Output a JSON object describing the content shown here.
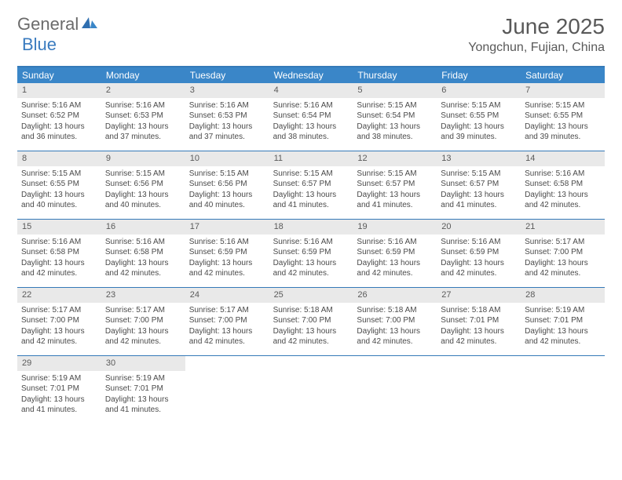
{
  "logo": {
    "text1": "General",
    "text2": "Blue"
  },
  "title": "June 2025",
  "location": "Yongchun, Fujian, China",
  "colors": {
    "header_bar": "#3a86c8",
    "header_text": "#ffffff",
    "border": "#357ab8",
    "daynum_bg": "#e9e9e9",
    "text": "#4a4a4a",
    "title_text": "#595959",
    "logo_gray": "#6b6b6b",
    "logo_blue": "#3a7bbf"
  },
  "weekdays": [
    "Sunday",
    "Monday",
    "Tuesday",
    "Wednesday",
    "Thursday",
    "Friday",
    "Saturday"
  ],
  "weeks": [
    [
      {
        "n": "1",
        "sunrise": "5:16 AM",
        "sunset": "6:52 PM",
        "day_h": 13,
        "day_m": 36
      },
      {
        "n": "2",
        "sunrise": "5:16 AM",
        "sunset": "6:53 PM",
        "day_h": 13,
        "day_m": 37
      },
      {
        "n": "3",
        "sunrise": "5:16 AM",
        "sunset": "6:53 PM",
        "day_h": 13,
        "day_m": 37
      },
      {
        "n": "4",
        "sunrise": "5:16 AM",
        "sunset": "6:54 PM",
        "day_h": 13,
        "day_m": 38
      },
      {
        "n": "5",
        "sunrise": "5:15 AM",
        "sunset": "6:54 PM",
        "day_h": 13,
        "day_m": 38
      },
      {
        "n": "6",
        "sunrise": "5:15 AM",
        "sunset": "6:55 PM",
        "day_h": 13,
        "day_m": 39
      },
      {
        "n": "7",
        "sunrise": "5:15 AM",
        "sunset": "6:55 PM",
        "day_h": 13,
        "day_m": 39
      }
    ],
    [
      {
        "n": "8",
        "sunrise": "5:15 AM",
        "sunset": "6:55 PM",
        "day_h": 13,
        "day_m": 40
      },
      {
        "n": "9",
        "sunrise": "5:15 AM",
        "sunset": "6:56 PM",
        "day_h": 13,
        "day_m": 40
      },
      {
        "n": "10",
        "sunrise": "5:15 AM",
        "sunset": "6:56 PM",
        "day_h": 13,
        "day_m": 40
      },
      {
        "n": "11",
        "sunrise": "5:15 AM",
        "sunset": "6:57 PM",
        "day_h": 13,
        "day_m": 41
      },
      {
        "n": "12",
        "sunrise": "5:15 AM",
        "sunset": "6:57 PM",
        "day_h": 13,
        "day_m": 41
      },
      {
        "n": "13",
        "sunrise": "5:15 AM",
        "sunset": "6:57 PM",
        "day_h": 13,
        "day_m": 41
      },
      {
        "n": "14",
        "sunrise": "5:16 AM",
        "sunset": "6:58 PM",
        "day_h": 13,
        "day_m": 42
      }
    ],
    [
      {
        "n": "15",
        "sunrise": "5:16 AM",
        "sunset": "6:58 PM",
        "day_h": 13,
        "day_m": 42
      },
      {
        "n": "16",
        "sunrise": "5:16 AM",
        "sunset": "6:58 PM",
        "day_h": 13,
        "day_m": 42
      },
      {
        "n": "17",
        "sunrise": "5:16 AM",
        "sunset": "6:59 PM",
        "day_h": 13,
        "day_m": 42
      },
      {
        "n": "18",
        "sunrise": "5:16 AM",
        "sunset": "6:59 PM",
        "day_h": 13,
        "day_m": 42
      },
      {
        "n": "19",
        "sunrise": "5:16 AM",
        "sunset": "6:59 PM",
        "day_h": 13,
        "day_m": 42
      },
      {
        "n": "20",
        "sunrise": "5:16 AM",
        "sunset": "6:59 PM",
        "day_h": 13,
        "day_m": 42
      },
      {
        "n": "21",
        "sunrise": "5:17 AM",
        "sunset": "7:00 PM",
        "day_h": 13,
        "day_m": 42
      }
    ],
    [
      {
        "n": "22",
        "sunrise": "5:17 AM",
        "sunset": "7:00 PM",
        "day_h": 13,
        "day_m": 42
      },
      {
        "n": "23",
        "sunrise": "5:17 AM",
        "sunset": "7:00 PM",
        "day_h": 13,
        "day_m": 42
      },
      {
        "n": "24",
        "sunrise": "5:17 AM",
        "sunset": "7:00 PM",
        "day_h": 13,
        "day_m": 42
      },
      {
        "n": "25",
        "sunrise": "5:18 AM",
        "sunset": "7:00 PM",
        "day_h": 13,
        "day_m": 42
      },
      {
        "n": "26",
        "sunrise": "5:18 AM",
        "sunset": "7:00 PM",
        "day_h": 13,
        "day_m": 42
      },
      {
        "n": "27",
        "sunrise": "5:18 AM",
        "sunset": "7:01 PM",
        "day_h": 13,
        "day_m": 42
      },
      {
        "n": "28",
        "sunrise": "5:19 AM",
        "sunset": "7:01 PM",
        "day_h": 13,
        "day_m": 42
      }
    ],
    [
      {
        "n": "29",
        "sunrise": "5:19 AM",
        "sunset": "7:01 PM",
        "day_h": 13,
        "day_m": 41
      },
      {
        "n": "30",
        "sunrise": "5:19 AM",
        "sunset": "7:01 PM",
        "day_h": 13,
        "day_m": 41
      },
      null,
      null,
      null,
      null,
      null
    ]
  ],
  "labels": {
    "sunrise": "Sunrise:",
    "sunset": "Sunset:",
    "daylight": "Daylight:",
    "hours": "hours",
    "and": "and",
    "minutes": "minutes."
  }
}
